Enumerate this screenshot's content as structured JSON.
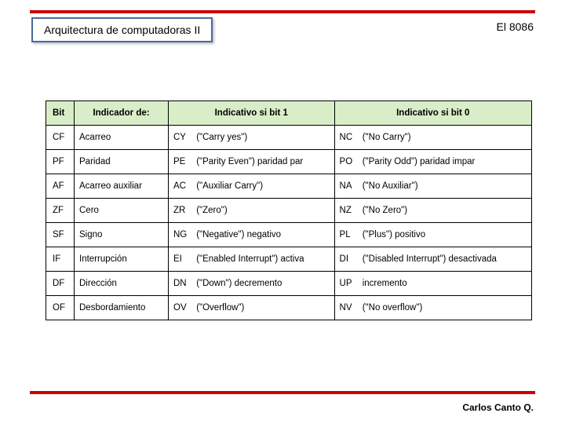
{
  "header": {
    "title": "Arquitectura de computadoras II",
    "top_right": "El 8086"
  },
  "footer": {
    "author": "Carlos  Canto Q."
  },
  "flags_table": {
    "type": "table",
    "background_color": "#ffffff",
    "header_bg": "#d9edc9",
    "border_color": "#000000",
    "font_size": 11.5,
    "columns": [
      {
        "key": "bit",
        "label": "Bit",
        "width": 36,
        "align": "left"
      },
      {
        "key": "indicador",
        "label": "Indicador de:",
        "width": 120,
        "align": "left"
      },
      {
        "key": "ind1",
        "label": "Indicativo si bit 1",
        "align": "left"
      },
      {
        "key": "ind0",
        "label": "Indicativo si bit 0",
        "align": "left"
      }
    ],
    "rows": [
      {
        "bit": "CF",
        "indicador": "Acarreo",
        "code1": "CY",
        "desc1": "(\"Carry yes\")",
        "code0": "NC",
        "desc0": "(\"No Carry\")"
      },
      {
        "bit": "PF",
        "indicador": "Paridad",
        "code1": "PE",
        "desc1": "(\"Parity Even\") paridad par",
        "code0": "PO",
        "desc0": "(\"Parity Odd\") paridad impar"
      },
      {
        "bit": "AF",
        "indicador": "Acarreo auxiliar",
        "code1": "AC",
        "desc1": "(\"Auxiliar Carry\")",
        "code0": "NA",
        "desc0": "(\"No Auxiliar\")"
      },
      {
        "bit": "ZF",
        "indicador": "Cero",
        "code1": "ZR",
        "desc1": "(\"Zero\")",
        "code0": "NZ",
        "desc0": "(\"No Zero\")"
      },
      {
        "bit": "SF",
        "indicador": "Signo",
        "code1": "NG",
        "desc1": "(\"Negative\") negativo",
        "code0": "PL",
        "desc0": "(\"Plus\") positivo"
      },
      {
        "bit": "IF",
        "indicador": "Interrupción",
        "code1": "EI",
        "desc1": "(\"Enabled Interrupt\") activa",
        "code0": "DI",
        "desc0": "(\"Disabled Interrupt\") desactivada"
      },
      {
        "bit": "DF",
        "indicador": "Dirección",
        "code1": "DN",
        "desc1": "(\"Down\")  decremento",
        "code0": "UP",
        "desc0": "incremento"
      },
      {
        "bit": "OF",
        "indicador": "Desbordamiento",
        "code1": "OV",
        "desc1": "(\"Overflow\")",
        "code0": "NV",
        "desc0": "(\"No overflow\")"
      }
    ]
  },
  "styling": {
    "rule_color": "#cc0000",
    "title_border_color": "#4a6a9c"
  }
}
